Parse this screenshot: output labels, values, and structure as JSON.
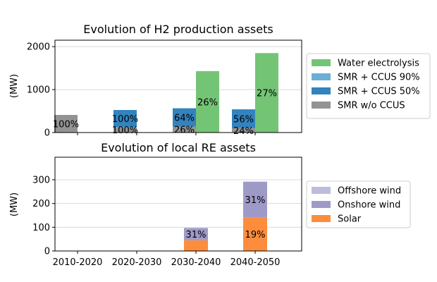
{
  "chart_data": [
    {
      "type": "bar",
      "stacked": true,
      "title": "Evolution of H2 production assets",
      "xlabel": "",
      "ylabel": "(MW)",
      "categories": [
        "2010-2020",
        "2020-2030",
        "2030-2040",
        "2040-2050"
      ],
      "ylim": [
        0,
        2150
      ],
      "yticks": [
        0,
        1000,
        2000
      ],
      "grid": true,
      "legend_position": "right",
      "groups": [
        {
          "name": "SMR",
          "series": [
            {
              "name": "SMR w/o CCUS",
              "color": "#939393",
              "values": [
                410,
                130,
                140,
                105
              ],
              "labels": [
                "100%",
                "100%",
                "26%",
                "24%"
              ]
            },
            {
              "name": "SMR + CCUS 50%",
              "color": "#3283be",
              "values": [
                0,
                395,
                425,
                435
              ],
              "labels": [
                "",
                "100%",
                "64%",
                "56%"
              ]
            },
            {
              "name": "SMR + CCUS 90%",
              "color": "#6baed6",
              "values": [
                0,
                0,
                0,
                0
              ],
              "labels": [
                "",
                "",
                "",
                ""
              ]
            }
          ]
        },
        {
          "name": "Electrolysis",
          "series": [
            {
              "name": "Water electrolysis",
              "color": "#74c476",
              "values": [
                0,
                0,
                1430,
                1850
              ],
              "labels": [
                "",
                "",
                "26%",
                "27%"
              ]
            }
          ]
        }
      ],
      "legend": [
        "Water electrolysis",
        "SMR + CCUS 90%",
        "SMR + CCUS 50%",
        "SMR w/o CCUS"
      ]
    },
    {
      "type": "bar",
      "stacked": true,
      "title": "Evolution of local RE assets",
      "xlabel": "",
      "ylabel": "(MW)",
      "categories": [
        "2010-2020",
        "2020-2030",
        "2030-2040",
        "2040-2050"
      ],
      "ylim": [
        0,
        395
      ],
      "yticks": [
        0,
        100,
        200,
        300
      ],
      "grid": true,
      "legend_position": "right",
      "series": [
        {
          "name": "Solar",
          "color": "#fd8d3c",
          "values": [
            0,
            0,
            45,
            142
          ],
          "labels": [
            "",
            "",
            "",
            "19%"
          ]
        },
        {
          "name": "Onshore wind",
          "color": "#9e9ac8",
          "values": [
            0,
            0,
            52,
            150
          ],
          "labels": [
            "",
            "",
            "31%",
            "31%"
          ]
        },
        {
          "name": "Offshore wind",
          "color": "#bcbddc",
          "values": [
            0,
            0,
            0,
            0
          ],
          "labels": [
            "",
            "",
            "",
            ""
          ]
        }
      ],
      "legend": [
        "Offshore wind",
        "Onshore wind",
        "Solar"
      ]
    }
  ]
}
